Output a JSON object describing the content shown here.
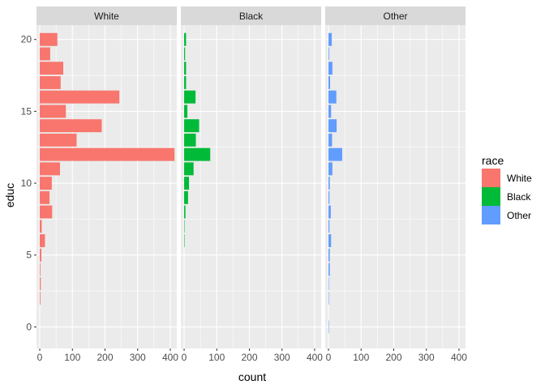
{
  "chart_data": {
    "type": "bar",
    "orientation": "horizontal",
    "faceted_by": "race",
    "xlabel": "count",
    "ylabel": "educ",
    "xlim": [
      -10,
      420
    ],
    "ylim": [
      -1.5,
      21
    ],
    "x_ticks": [
      0,
      100,
      200,
      300,
      400
    ],
    "y_ticks": [
      0,
      5,
      10,
      15,
      20
    ],
    "bar_height": 0.9,
    "grid": true,
    "legend": {
      "title": "race",
      "position": "right",
      "entries": [
        {
          "label": "White",
          "color": "#F8766D"
        },
        {
          "label": "Black",
          "color": "#00BA38"
        },
        {
          "label": "Other",
          "color": "#619CFF"
        }
      ]
    },
    "panels": [
      {
        "name": "White",
        "color": "#F8766D",
        "bars": [
          {
            "y": 0,
            "count": 0
          },
          {
            "y": 1,
            "count": 0
          },
          {
            "y": 2,
            "count": 2
          },
          {
            "y": 3,
            "count": 3
          },
          {
            "y": 4,
            "count": 2
          },
          {
            "y": 5,
            "count": 5
          },
          {
            "y": 6,
            "count": 16
          },
          {
            "y": 7,
            "count": 6
          },
          {
            "y": 8,
            "count": 38
          },
          {
            "y": 9,
            "count": 30
          },
          {
            "y": 10,
            "count": 37
          },
          {
            "y": 11,
            "count": 62
          },
          {
            "y": 12,
            "count": 413
          },
          {
            "y": 13,
            "count": 113
          },
          {
            "y": 14,
            "count": 190
          },
          {
            "y": 15,
            "count": 80
          },
          {
            "y": 16,
            "count": 244
          },
          {
            "y": 17,
            "count": 64
          },
          {
            "y": 18,
            "count": 72
          },
          {
            "y": 19,
            "count": 32
          },
          {
            "y": 20,
            "count": 54
          }
        ]
      },
      {
        "name": "Black",
        "color": "#00BA38",
        "bars": [
          {
            "y": 0,
            "count": 0
          },
          {
            "y": 1,
            "count": 0
          },
          {
            "y": 2,
            "count": 0
          },
          {
            "y": 3,
            "count": 0
          },
          {
            "y": 4,
            "count": 0
          },
          {
            "y": 5,
            "count": 0
          },
          {
            "y": 6,
            "count": 1
          },
          {
            "y": 7,
            "count": 1
          },
          {
            "y": 8,
            "count": 4
          },
          {
            "y": 9,
            "count": 12
          },
          {
            "y": 10,
            "count": 15
          },
          {
            "y": 11,
            "count": 29
          },
          {
            "y": 12,
            "count": 80
          },
          {
            "y": 13,
            "count": 36
          },
          {
            "y": 14,
            "count": 46
          },
          {
            "y": 15,
            "count": 10
          },
          {
            "y": 16,
            "count": 35
          },
          {
            "y": 17,
            "count": 6
          },
          {
            "y": 18,
            "count": 6
          },
          {
            "y": 19,
            "count": 3
          },
          {
            "y": 20,
            "count": 6
          }
        ]
      },
      {
        "name": "Other",
        "color": "#619CFF",
        "bars": [
          {
            "y": 0,
            "count": 1
          },
          {
            "y": 1,
            "count": 0
          },
          {
            "y": 2,
            "count": 1
          },
          {
            "y": 3,
            "count": 1
          },
          {
            "y": 4,
            "count": 4
          },
          {
            "y": 5,
            "count": 4
          },
          {
            "y": 6,
            "count": 8
          },
          {
            "y": 7,
            "count": 3
          },
          {
            "y": 8,
            "count": 7
          },
          {
            "y": 9,
            "count": 3
          },
          {
            "y": 10,
            "count": 4
          },
          {
            "y": 11,
            "count": 12
          },
          {
            "y": 12,
            "count": 42
          },
          {
            "y": 13,
            "count": 11
          },
          {
            "y": 14,
            "count": 25
          },
          {
            "y": 15,
            "count": 8
          },
          {
            "y": 16,
            "count": 24
          },
          {
            "y": 17,
            "count": 5
          },
          {
            "y": 18,
            "count": 12
          },
          {
            "y": 19,
            "count": 2
          },
          {
            "y": 20,
            "count": 10
          }
        ]
      }
    ]
  }
}
